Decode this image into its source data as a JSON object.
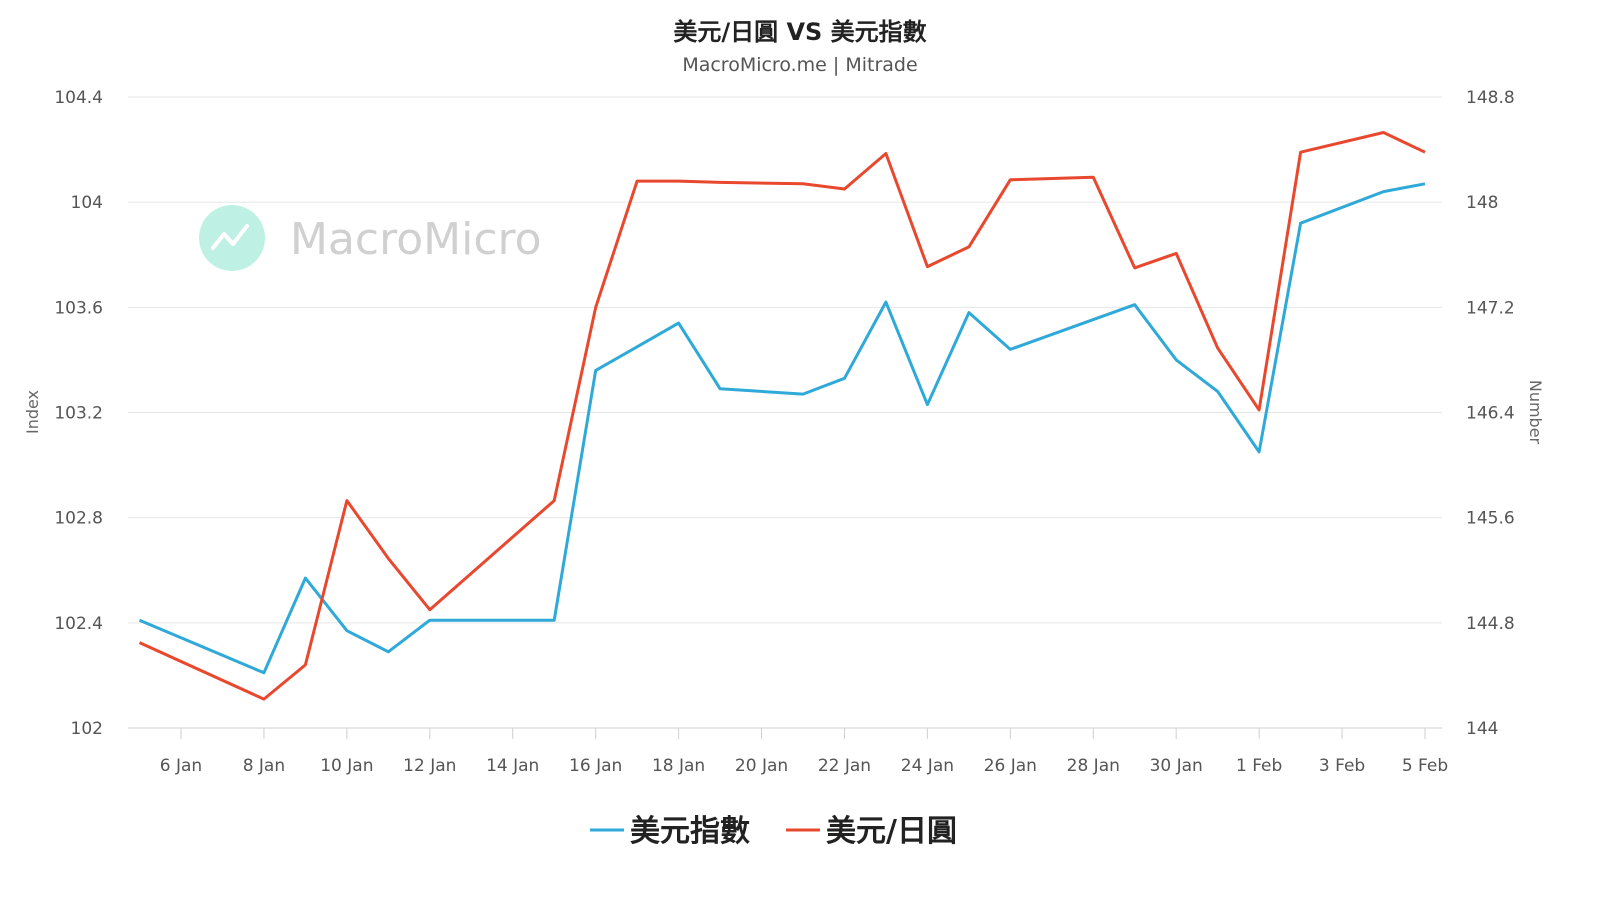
{
  "chart_data": {
    "type": "line",
    "title": "美元/日圓 VS 美元指數",
    "subtitle": "MacroMicro.me | Mitrade",
    "watermark": "MacroMicro",
    "y_left": {
      "label": "Index",
      "ticks": [
        "102",
        "102.4",
        "102.8",
        "103.2",
        "103.6",
        "104",
        "104.4"
      ],
      "range": [
        102,
        104.4
      ]
    },
    "y_right": {
      "label": "Number",
      "ticks": [
        "144",
        "144.8",
        "145.6",
        "146.4",
        "147.2",
        "148",
        "148.8"
      ],
      "range": [
        144,
        148.8
      ]
    },
    "x_ticks": [
      "6 Jan",
      "8 Jan",
      "10 Jan",
      "12 Jan",
      "14 Jan",
      "16 Jan",
      "18 Jan",
      "20 Jan",
      "22 Jan",
      "24 Jan",
      "26 Jan",
      "28 Jan",
      "30 Jan",
      "1 Feb",
      "3 Feb",
      "5 Feb"
    ],
    "grid": true,
    "legend_position": "bottom",
    "series": [
      {
        "name": "美元指數",
        "axis": "left",
        "color": "#2fa9d8",
        "points": [
          [
            "5 Jan",
            102.41
          ],
          [
            "8 Jan",
            102.21
          ],
          [
            "9 Jan",
            102.57
          ],
          [
            "10 Jan",
            102.37
          ],
          [
            "11 Jan",
            102.29
          ],
          [
            "12 Jan",
            102.41
          ],
          [
            "15 Jan",
            102.41
          ],
          [
            "16 Jan",
            103.36
          ],
          [
            "17 Jan",
            103.45
          ],
          [
            "18 Jan",
            103.54
          ],
          [
            "19 Jan",
            103.29
          ],
          [
            "21 Jan",
            103.27
          ],
          [
            "22 Jan",
            103.33
          ],
          [
            "23 Jan",
            103.62
          ],
          [
            "24 Jan",
            103.23
          ],
          [
            "25 Jan",
            103.58
          ],
          [
            "26 Jan",
            103.44
          ],
          [
            "29 Jan",
            103.61
          ],
          [
            "30 Jan",
            103.4
          ],
          [
            "31 Jan",
            103.28
          ],
          [
            "1 Feb",
            103.05
          ],
          [
            "2 Feb",
            103.92
          ],
          [
            "4 Feb",
            104.04
          ],
          [
            "5 Feb",
            104.07
          ]
        ]
      },
      {
        "name": "美元/日圓",
        "axis": "right",
        "color": "#e8492e",
        "points": [
          [
            "5 Jan",
            144.65
          ],
          [
            "8 Jan",
            144.22
          ],
          [
            "9 Jan",
            144.48
          ],
          [
            "10 Jan",
            145.73
          ],
          [
            "11 Jan",
            145.29
          ],
          [
            "12 Jan",
            144.9
          ],
          [
            "15 Jan",
            145.73
          ],
          [
            "16 Jan",
            147.2
          ],
          [
            "17 Jan",
            148.16
          ],
          [
            "18 Jan",
            148.16
          ],
          [
            "19 Jan",
            148.15
          ],
          [
            "21 Jan",
            148.14
          ],
          [
            "22 Jan",
            148.1
          ],
          [
            "23 Jan",
            148.37
          ],
          [
            "24 Jan",
            147.51
          ],
          [
            "25 Jan",
            147.66
          ],
          [
            "26 Jan",
            148.17
          ],
          [
            "28 Jan",
            148.19
          ],
          [
            "29 Jan",
            147.5
          ],
          [
            "30 Jan",
            147.61
          ],
          [
            "31 Jan",
            146.89
          ],
          [
            "1 Feb",
            146.42
          ],
          [
            "2 Feb",
            148.38
          ],
          [
            "4 Feb",
            148.53
          ],
          [
            "5 Feb",
            148.38
          ]
        ]
      }
    ]
  }
}
